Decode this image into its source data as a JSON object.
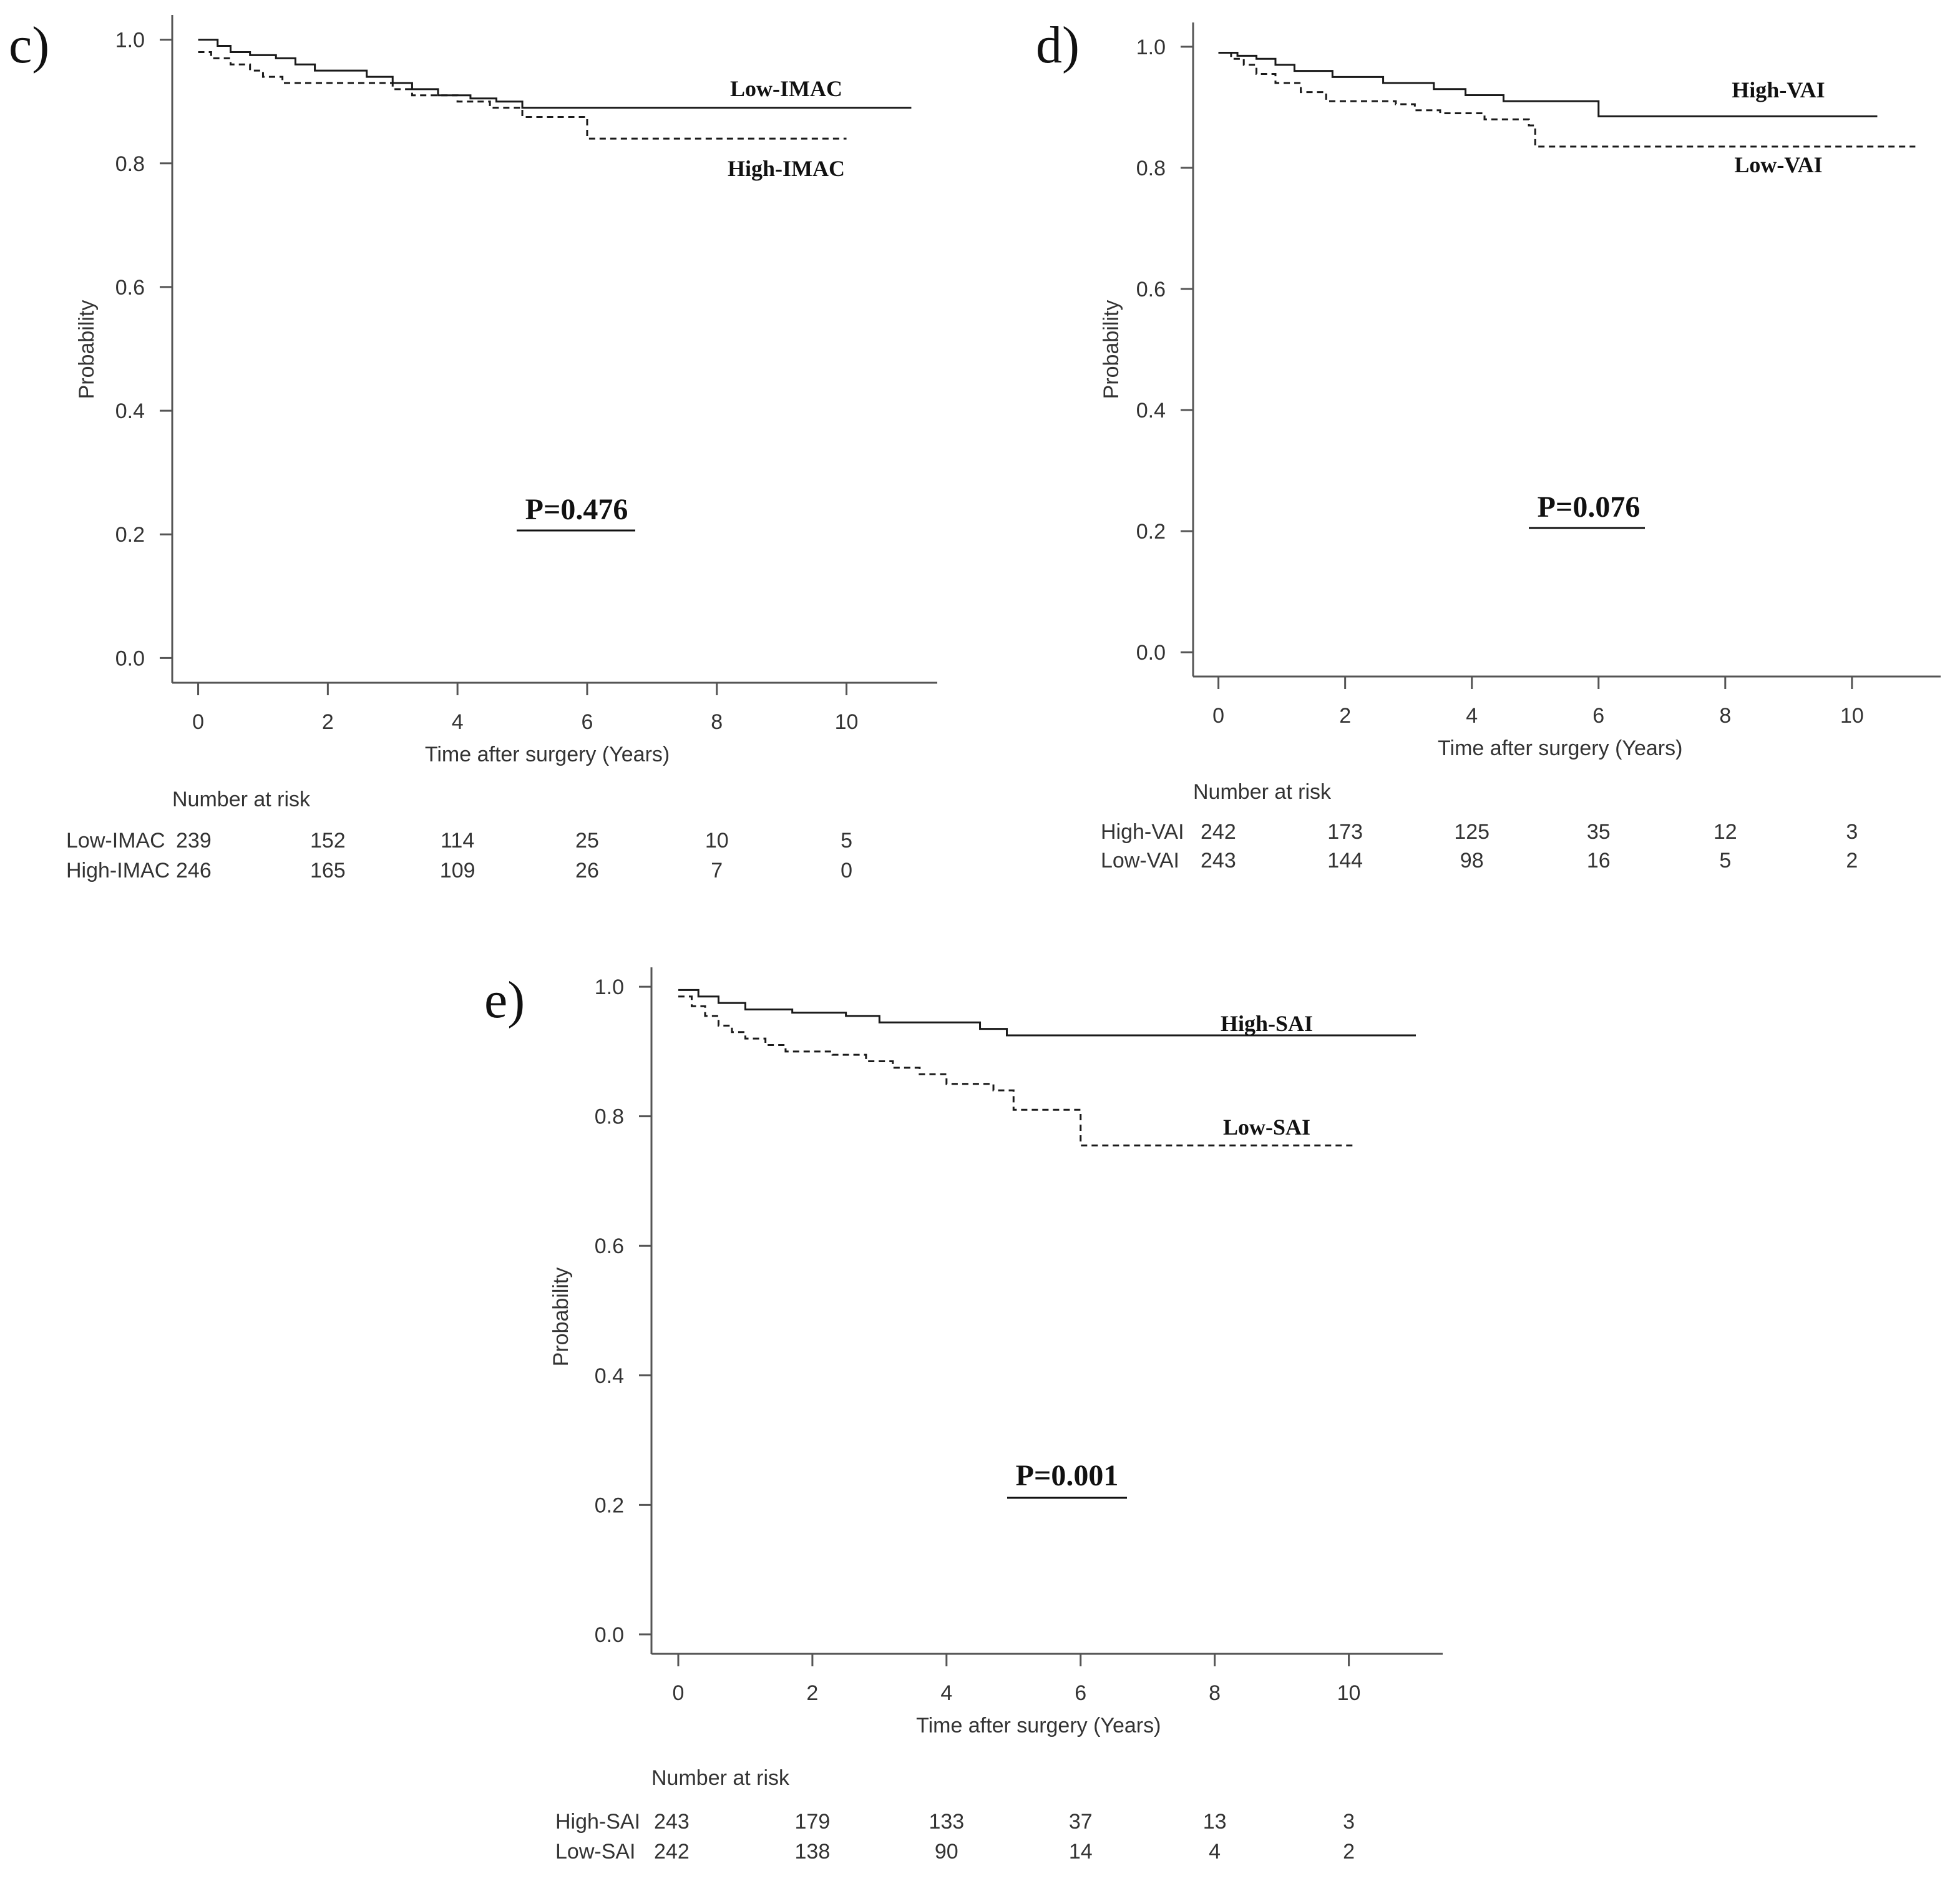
{
  "chart_data": [
    {
      "type": "line",
      "panel_label": "c)",
      "xlabel": "Time after surgery (Years)",
      "ylabel": "Probability",
      "xlim": [
        -0.4,
        11.4
      ],
      "ylim": [
        -0.04,
        1.04
      ],
      "x_ticks": [
        "0",
        "2",
        "4",
        "6",
        "8",
        "10"
      ],
      "y_ticks": [
        "0.0",
        "0.2",
        "0.4",
        "0.6",
        "0.8",
        "1.0"
      ],
      "p_value": "P=0.476",
      "series": [
        {
          "name": "Low-IMAC",
          "style": "solid",
          "x": [
            0,
            0.3,
            0.5,
            0.8,
            1.2,
            1.5,
            1.8,
            2.6,
            3.0,
            3.3,
            3.7,
            4.2,
            4.6,
            5.0,
            11.0
          ],
          "y": [
            1.0,
            0.99,
            0.98,
            0.975,
            0.97,
            0.96,
            0.95,
            0.94,
            0.93,
            0.92,
            0.91,
            0.905,
            0.9,
            0.89,
            0.89
          ]
        },
        {
          "name": "High-IMAC",
          "style": "dashed",
          "x": [
            0,
            0.2,
            0.5,
            0.8,
            1.0,
            1.3,
            3.0,
            3.3,
            4.0,
            4.5,
            5.0,
            6.0,
            10.0
          ],
          "y": [
            0.98,
            0.97,
            0.96,
            0.95,
            0.94,
            0.93,
            0.92,
            0.91,
            0.9,
            0.89,
            0.875,
            0.84,
            0.84
          ]
        }
      ],
      "risk_table": {
        "title": "Number at risk",
        "rows": [
          {
            "label": "Low-IMAC",
            "values": [
              "239",
              "152",
              "114",
              "25",
              "10",
              "5"
            ]
          },
          {
            "label": "High-IMAC",
            "values": [
              "246",
              "165",
              "109",
              "26",
              "7",
              "0"
            ]
          }
        ]
      }
    },
    {
      "type": "line",
      "panel_label": "d)",
      "xlabel": "Time after surgery (Years)",
      "ylabel": "Probability",
      "xlim": [
        -0.4,
        11.4
      ],
      "ylim": [
        -0.04,
        1.04
      ],
      "x_ticks": [
        "0",
        "2",
        "4",
        "6",
        "8",
        "10"
      ],
      "y_ticks": [
        "0.0",
        "0.2",
        "0.4",
        "0.6",
        "0.8",
        "1.0"
      ],
      "p_value": "P=0.076",
      "series": [
        {
          "name": "High-VAI",
          "style": "solid",
          "x": [
            0,
            0.3,
            0.6,
            0.9,
            1.2,
            1.8,
            2.6,
            3.4,
            3.9,
            4.5,
            6.0,
            10.4
          ],
          "y": [
            0.99,
            0.985,
            0.98,
            0.97,
            0.96,
            0.95,
            0.94,
            0.93,
            0.92,
            0.91,
            0.885,
            0.885
          ]
        },
        {
          "name": "Low-VAI",
          "style": "dashed",
          "x": [
            0,
            0.2,
            0.4,
            0.6,
            0.9,
            1.3,
            1.7,
            2.8,
            3.1,
            3.5,
            4.2,
            4.9,
            5.0,
            11.0
          ],
          "y": [
            0.99,
            0.98,
            0.97,
            0.955,
            0.94,
            0.925,
            0.91,
            0.905,
            0.895,
            0.89,
            0.88,
            0.87,
            0.835,
            0.835
          ]
        }
      ],
      "risk_table": {
        "title": "Number at risk",
        "rows": [
          {
            "label": "High-VAI",
            "values": [
              "242",
              "173",
              "125",
              "35",
              "12",
              "3"
            ]
          },
          {
            "label": "Low-VAI",
            "values": [
              "243",
              "144",
              "98",
              "16",
              "5",
              "2"
            ]
          }
        ]
      }
    },
    {
      "type": "line",
      "panel_label": "e)",
      "xlabel": "Time after surgery (Years)",
      "ylabel": "Probability",
      "xlim": [
        -0.4,
        11.4
      ],
      "ylim": [
        -0.03,
        1.03
      ],
      "x_ticks": [
        "0",
        "2",
        "4",
        "6",
        "8",
        "10"
      ],
      "y_ticks": [
        "0.0",
        "0.2",
        "0.4",
        "0.6",
        "0.8",
        "1.0"
      ],
      "p_value": "P=0.001",
      "series": [
        {
          "name": "High-SAI",
          "style": "solid",
          "x": [
            0,
            0.3,
            0.6,
            1.0,
            1.7,
            2.5,
            3.0,
            4.5,
            4.9,
            11.0
          ],
          "y": [
            0.995,
            0.985,
            0.975,
            0.965,
            0.96,
            0.955,
            0.945,
            0.935,
            0.925,
            0.925
          ]
        },
        {
          "name": "Low-SAI",
          "style": "dashed",
          "x": [
            0,
            0.2,
            0.4,
            0.6,
            0.8,
            1.0,
            1.3,
            1.6,
            2.3,
            2.8,
            3.2,
            3.6,
            4.0,
            4.7,
            5.0,
            6.0,
            10.1
          ],
          "y": [
            0.985,
            0.97,
            0.955,
            0.94,
            0.93,
            0.92,
            0.91,
            0.9,
            0.895,
            0.885,
            0.875,
            0.865,
            0.85,
            0.84,
            0.81,
            0.755,
            0.755
          ]
        }
      ],
      "risk_table": {
        "title": "Number at risk",
        "rows": [
          {
            "label": "High-SAI",
            "values": [
              "243",
              "179",
              "133",
              "37",
              "13",
              "3"
            ]
          },
          {
            "label": "Low-SAI",
            "values": [
              "242",
              "138",
              "90",
              "14",
              "4",
              "2"
            ]
          }
        ]
      }
    }
  ]
}
